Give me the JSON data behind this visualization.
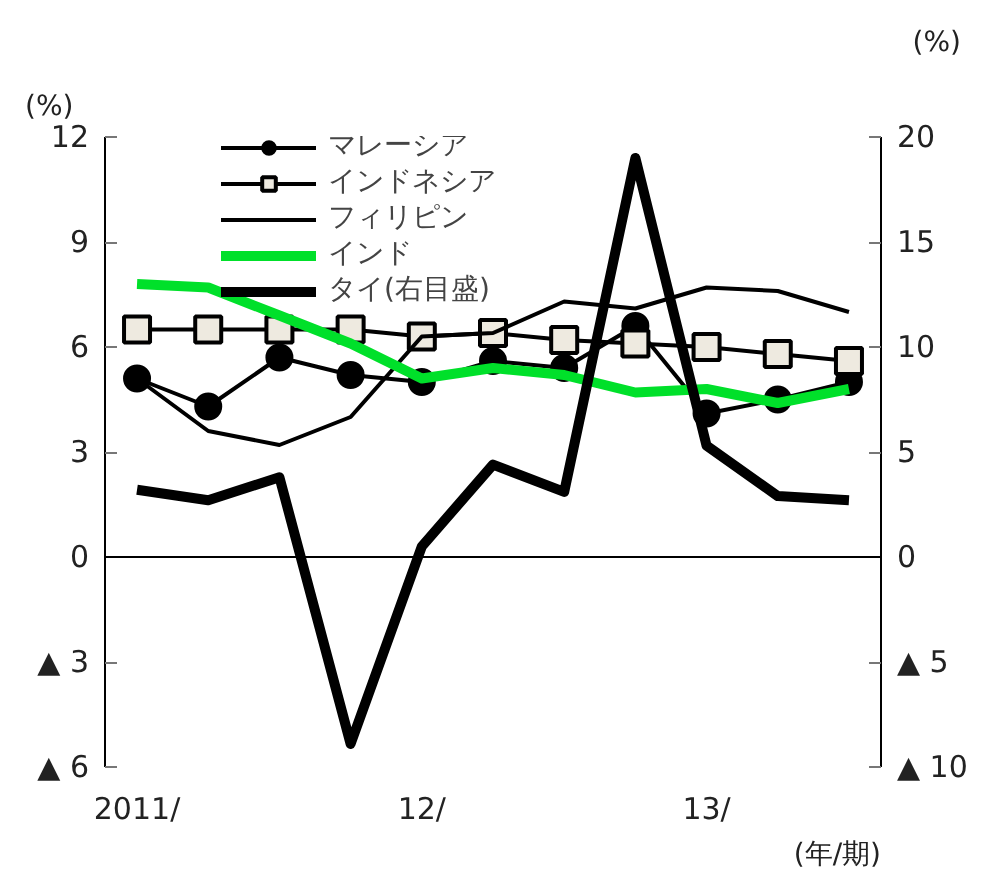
{
  "chart_data": {
    "type": "line",
    "categories": [
      "2011/",
      null,
      null,
      null,
      "12/",
      null,
      null,
      null,
      "13/",
      null,
      null
    ],
    "series": [
      {
        "name": "マレーシア",
        "color": "#000000",
        "marker": "circle",
        "values": [
          5.1,
          4.3,
          5.7,
          5.2,
          5.0,
          5.6,
          5.4,
          6.6,
          4.1,
          4.5,
          5.0
        ]
      },
      {
        "name": "インドネシア",
        "color": "#000000",
        "marker": "square",
        "values": [
          6.5,
          6.5,
          6.5,
          6.5,
          6.3,
          6.4,
          6.2,
          6.1,
          6.0,
          5.8,
          5.6
        ]
      },
      {
        "name": "フィリピン",
        "color": "#000000",
        "values": [
          5.1,
          3.6,
          3.2,
          4.0,
          6.3,
          6.4,
          7.3,
          7.1,
          7.7,
          7.6,
          7.0
        ]
      },
      {
        "name": "インド",
        "color": "#00e02a",
        "values": [
          7.8,
          7.7,
          6.9,
          6.1,
          5.1,
          5.4,
          5.2,
          4.7,
          4.8,
          4.4,
          4.8
        ]
      },
      {
        "name": "タイ(右目盛)",
        "color": "#000000",
        "axis": "y2",
        "values": [
          3.2,
          2.7,
          3.8,
          -8.9,
          0.5,
          4.4,
          3.1,
          19.0,
          5.3,
          2.9,
          2.7
        ]
      }
    ],
    "ylabel": "(%)",
    "y2label": "(%)",
    "xlabel": "(年/期)",
    "ylim": [
      -6,
      12
    ],
    "yticks": [
      {
        "value": -6,
        "label": "▲ 6"
      },
      {
        "value": -3,
        "label": "▲ 3"
      },
      0,
      3,
      6,
      9,
      12
    ],
    "y2lim": [
      -10,
      20
    ],
    "y2ticks": [
      {
        "value": -10,
        "label": "▲ 10"
      },
      {
        "value": -5,
        "label": "▲ 5"
      },
      0,
      5,
      10,
      15,
      20
    ],
    "ref_lines": [
      {
        "axis": "y",
        "value": 0,
        "label": null,
        "color": "#000000"
      }
    ],
    "legend": "top left",
    "grid": false
  }
}
